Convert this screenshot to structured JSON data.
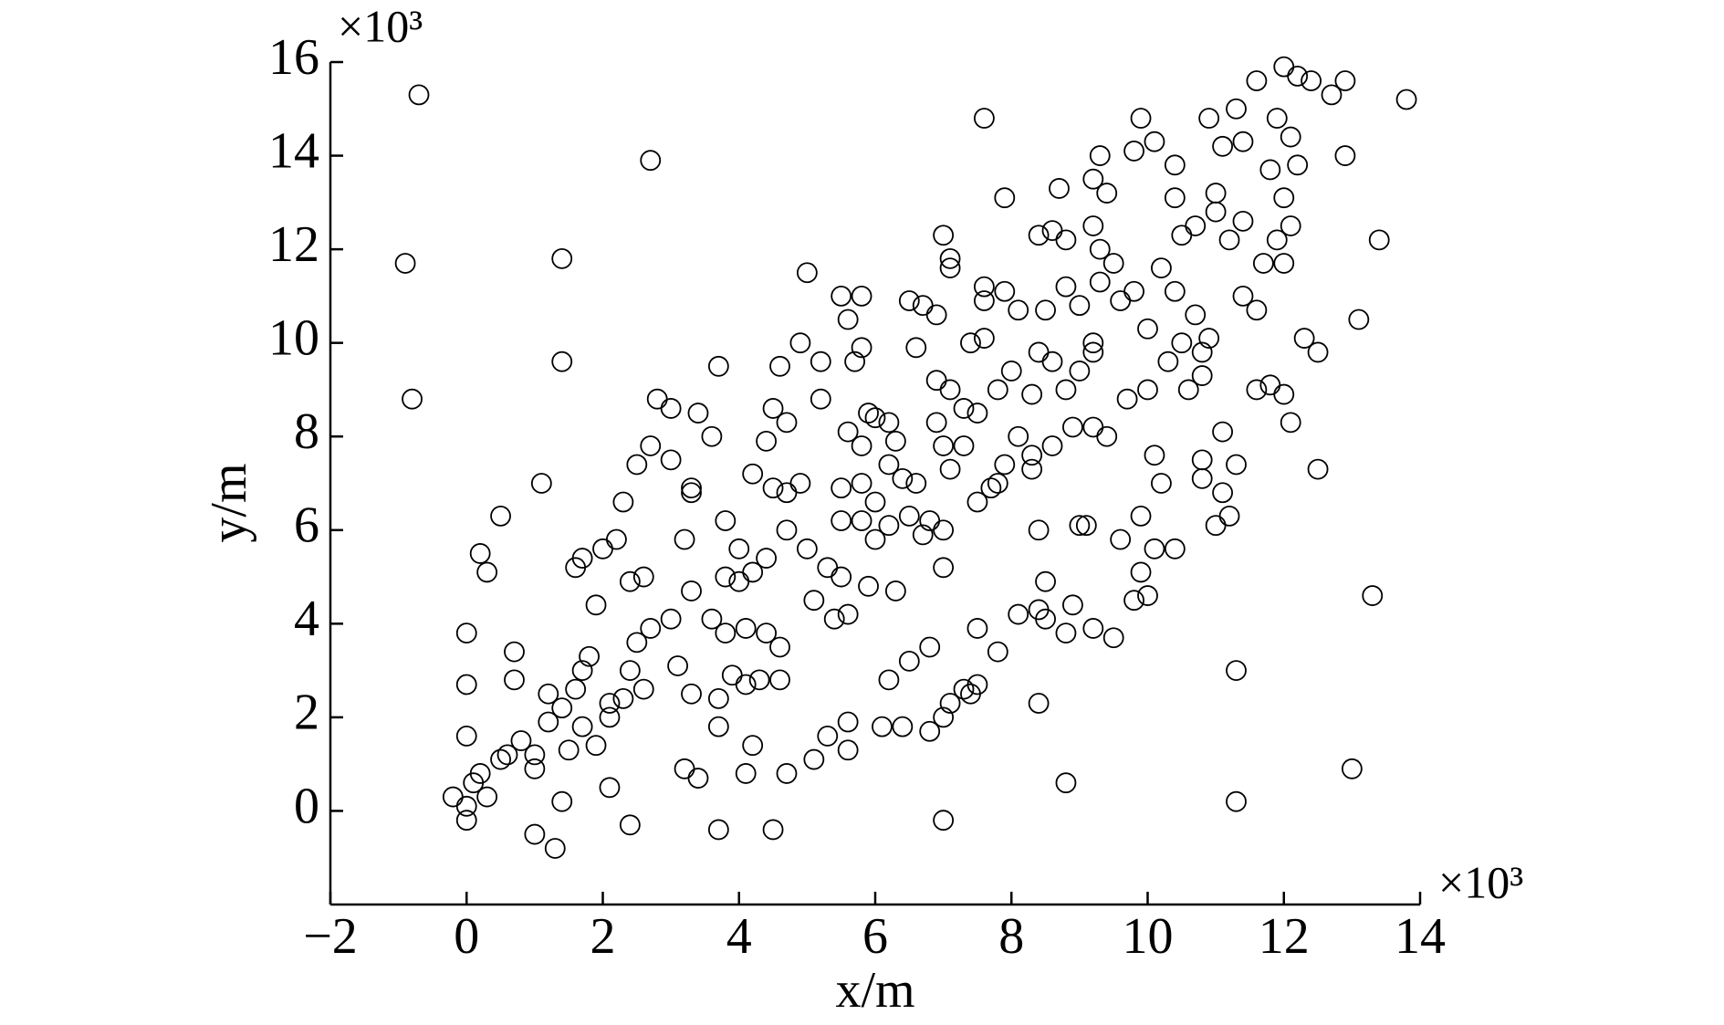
{
  "chart_data": {
    "type": "scatter",
    "x_label": "x/m",
    "y_label": "y/m",
    "x_multiplier": "×10³",
    "y_multiplier": "×10³",
    "marker_color": "#000000",
    "xlim": [
      -2,
      14
    ],
    "ylim": [
      -2,
      16
    ],
    "xticks": [
      {
        "value": -2,
        "label": "−2"
      },
      0,
      2,
      4,
      6,
      8,
      10,
      12,
      14
    ],
    "yticks": [
      0,
      2,
      4,
      6,
      8,
      10,
      12,
      14,
      16
    ],
    "x": [
      -0.7,
      -0.9,
      -0.8,
      2.7,
      1.4,
      1.4,
      1.1,
      0.5,
      0.2,
      0.3,
      0,
      0,
      0.7,
      0.7,
      0,
      -0.2,
      0,
      0,
      0.1,
      0.2,
      0.3,
      0.5,
      0.6,
      0.8,
      1.0,
      1.0,
      1.2,
      1.2,
      1.4,
      1.5,
      1.6,
      1.0,
      1.3,
      1.4,
      2.1,
      2.4,
      3.2,
      3.4,
      3.7,
      3.7,
      4.1,
      4.2,
      4.5,
      4.7,
      5.1,
      5.3,
      5.6,
      5.6,
      6.1,
      6.2,
      6.4,
      6.5,
      6.8,
      6.8,
      7.0,
      7.1,
      7.0,
      7.3,
      7.4,
      7.5,
      7.5,
      7.8,
      8.1,
      8.4,
      8.4,
      8.5,
      8.5,
      8.8,
      8.8,
      8.9,
      9.2,
      9.5,
      9.1,
      9.6,
      9.8,
      9.9,
      9.9,
      10.0,
      10.1,
      10.4,
      10.1,
      10.2,
      10.8,
      10.8,
      11.0,
      11.1,
      11.2,
      11.3,
      11.3,
      11.3,
      11.1,
      11.6,
      11.8,
      12.0,
      12.1,
      12.3,
      12.5,
      12.5,
      13.0,
      13.1,
      13.3,
      13.4,
      13.8,
      12.9,
      12.9,
      12.7,
      12.0,
      12.2,
      12.4,
      11.6,
      11.9,
      12.1,
      11.3,
      11.8,
      12.2,
      12.0,
      11.9,
      12.1,
      11.7,
      12.0,
      11.6,
      11.4,
      11.4,
      11.2,
      11.0,
      11.0,
      10.7,
      10.5,
      10.4,
      10.2,
      10.0,
      10.9,
      11.1,
      11.4,
      10.4,
      10.4,
      9.9,
      10.1,
      9.8,
      9.3,
      9.2,
      9.4,
      9.3,
      9.2,
      8.8,
      8.7,
      8.6,
      8.4,
      7.9,
      7.6,
      7.1,
      7.0,
      7.1,
      7.6,
      7.9,
      7.6,
      7.4,
      7.6,
      8.1,
      8.4,
      8.5,
      8.8,
      9.0,
      9.3,
      9.5,
      9.6,
      9.8,
      9.2,
      9.0,
      9.2,
      8.8,
      8.6,
      8.3,
      8.0,
      7.8,
      7.5,
      7.3,
      7.1,
      6.9,
      6.6,
      6.7,
      6.5,
      6.9,
      6.9,
      7.0,
      7.1,
      7.3,
      7.5,
      7.7,
      7.9,
      8.1,
      8.3,
      8.6,
      8.9,
      9.2,
      9.4,
      9.7,
      10.0,
      10.3,
      10.5,
      10.7,
      10.8,
      10.9,
      10.8,
      10.6,
      9.0,
      8.4,
      8.3,
      7.8,
      7.0,
      6.8,
      6.5,
      6.4,
      6.2,
      6.0,
      5.8,
      5.8,
      5.6,
      5.9,
      5.7,
      5.8,
      5.6,
      5.5,
      5.0,
      5.8,
      5.2,
      5.2,
      4.6,
      4.9,
      4.5,
      4.7,
      4.4,
      4.2,
      4.5,
      4.7,
      4.9,
      4.7,
      4.4,
      4.2,
      4.0,
      3.8,
      4.0,
      3.8,
      3.6,
      3.7,
      3.4,
      3.3,
      3.3,
      3.2,
      3.3,
      3.6,
      3.8,
      4.1,
      4.4,
      4.6,
      4.6,
      4.3,
      4.1,
      3.9,
      3.7,
      3.3,
      3.1,
      3.0,
      2.7,
      2.5,
      2.4,
      2.6,
      2.3,
      2.1,
      2.1,
      1.7,
      1.9,
      1.7,
      1.8,
      1.9,
      2.0,
      2.2,
      2.3,
      2.5,
      2.7,
      2.8,
      3.0,
      3.0,
      2.6,
      2.4,
      1.7,
      1.6,
      5.0,
      5.3,
      5.5,
      5.6,
      5.4,
      5.1,
      5.9,
      6.3,
      6.0,
      6.2,
      6.7,
      7.0,
      5.5,
      6.6,
      6.3,
      6.2,
      6.0,
      5.8,
      5.5
    ],
    "values": [
      15.3,
      11.7,
      8.8,
      13.9,
      11.8,
      9.6,
      7.0,
      6.3,
      5.5,
      5.1,
      3.8,
      2.7,
      3.4,
      2.8,
      1.6,
      0.3,
      0.1,
      -0.2,
      0.6,
      0.8,
      0.3,
      1.1,
      1.2,
      1.5,
      0.9,
      1.2,
      1.9,
      2.5,
      2.2,
      1.3,
      2.6,
      -0.5,
      -0.8,
      0.2,
      0.5,
      -0.3,
      0.9,
      0.7,
      -0.4,
      1.8,
      0.8,
      1.4,
      -0.4,
      0.8,
      1.1,
      1.6,
      1.3,
      1.9,
      1.8,
      2.8,
      1.8,
      3.2,
      1.7,
      3.5,
      2.0,
      2.3,
      -0.2,
      2.6,
      2.5,
      3.9,
      2.7,
      3.4,
      4.2,
      4.3,
      2.3,
      4.9,
      4.1,
      0.6,
      3.8,
      4.4,
      3.9,
      3.7,
      6.1,
      5.8,
      4.5,
      6.3,
      5.1,
      4.6,
      5.6,
      5.6,
      7.6,
      7.0,
      7.1,
      7.5,
      6.1,
      6.8,
      6.3,
      7.4,
      3.0,
      0.2,
      8.1,
      9.0,
      9.1,
      8.9,
      8.3,
      10.1,
      9.8,
      7.3,
      0.9,
      10.5,
      4.6,
      12.2,
      15.2,
      14.0,
      15.6,
      15.3,
      15.9,
      15.7,
      15.6,
      15.6,
      14.8,
      14.4,
      15.0,
      13.7,
      13.8,
      13.1,
      12.2,
      12.5,
      11.7,
      11.7,
      10.7,
      11.0,
      12.6,
      12.2,
      12.8,
      13.2,
      12.5,
      12.3,
      11.1,
      11.6,
      10.3,
      14.8,
      14.2,
      14.3,
      13.1,
      13.8,
      14.8,
      14.3,
      14.1,
      14.0,
      13.5,
      13.2,
      12.0,
      12.5,
      12.2,
      13.3,
      12.4,
      12.3,
      13.1,
      14.8,
      11.8,
      12.3,
      11.6,
      11.2,
      11.1,
      10.9,
      10.0,
      10.1,
      10.7,
      9.8,
      10.7,
      11.2,
      10.8,
      11.3,
      11.7,
      10.9,
      11.1,
      10.0,
      9.4,
      9.8,
      9.0,
      9.6,
      8.9,
      9.4,
      9.0,
      8.5,
      8.6,
      9.0,
      9.2,
      9.9,
      10.8,
      10.9,
      10.6,
      8.3,
      7.8,
      7.3,
      7.8,
      6.6,
      6.9,
      7.4,
      8.0,
      7.3,
      7.8,
      8.2,
      8.2,
      8.0,
      8.8,
      9.0,
      9.6,
      10.0,
      10.6,
      9.8,
      10.1,
      9.3,
      9.0,
      6.1,
      6.0,
      7.6,
      7.0,
      6.0,
      6.2,
      6.3,
      7.1,
      7.4,
      6.6,
      6.2,
      7.8,
      8.1,
      8.5,
      9.6,
      9.9,
      10.5,
      11.0,
      11.5,
      11.0,
      9.6,
      8.8,
      9.5,
      10.0,
      8.6,
      8.3,
      7.9,
      7.2,
      6.9,
      6.8,
      7.0,
      6.0,
      5.4,
      5.1,
      4.9,
      5.0,
      5.6,
      6.2,
      8.0,
      9.5,
      8.5,
      6.9,
      6.8,
      5.8,
      4.7,
      4.1,
      3.8,
      3.9,
      3.8,
      3.5,
      2.8,
      2.8,
      2.7,
      2.9,
      2.4,
      2.5,
      3.1,
      4.1,
      3.9,
      3.6,
      3.0,
      2.6,
      2.4,
      2.3,
      2.0,
      1.8,
      1.4,
      3.0,
      3.3,
      4.4,
      5.6,
      5.8,
      6.6,
      7.4,
      7.8,
      8.8,
      8.6,
      7.5,
      5.0,
      4.9,
      5.4,
      5.2,
      5.6,
      5.2,
      5.0,
      4.2,
      4.1,
      4.5,
      4.8,
      4.7,
      5.8,
      6.1,
      5.9,
      5.2,
      6.2,
      7.0,
      7.9,
      8.3,
      8.4,
      7.0,
      6.9
    ]
  }
}
